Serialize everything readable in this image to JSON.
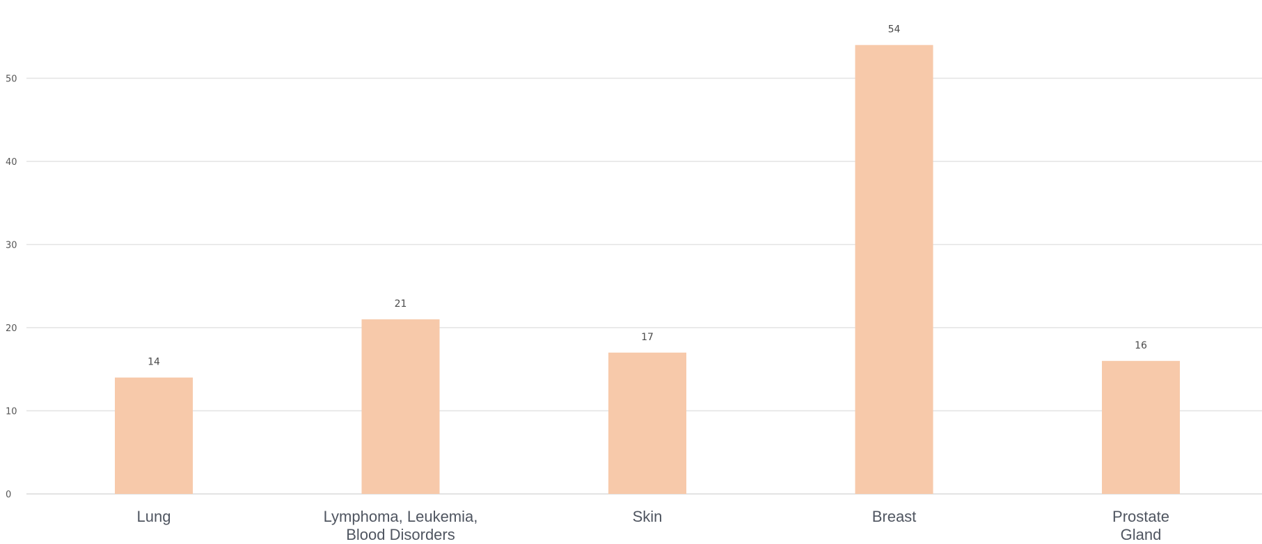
{
  "chart_data": {
    "type": "bar",
    "categories": [
      [
        "Lung"
      ],
      [
        "Lymphoma, Leukemia,",
        "Blood Disorders"
      ],
      [
        "Skin"
      ],
      [
        "Breast"
      ],
      [
        "Prostate",
        "Gland"
      ]
    ],
    "values": [
      14,
      21,
      17,
      54,
      16
    ],
    "title": "",
    "xlabel": "",
    "ylabel": "",
    "ylim": [
      0,
      55
    ],
    "yticks": [
      0,
      10,
      20,
      30,
      40,
      50
    ],
    "grid": true,
    "legend": "none",
    "data_labels": true,
    "colors": {
      "bar": "#f7c9aa",
      "grid": "#e3e3e3",
      "tick_text": "#555555",
      "category_text": "#4f5560",
      "value_text": "#4a4a4a"
    }
  }
}
